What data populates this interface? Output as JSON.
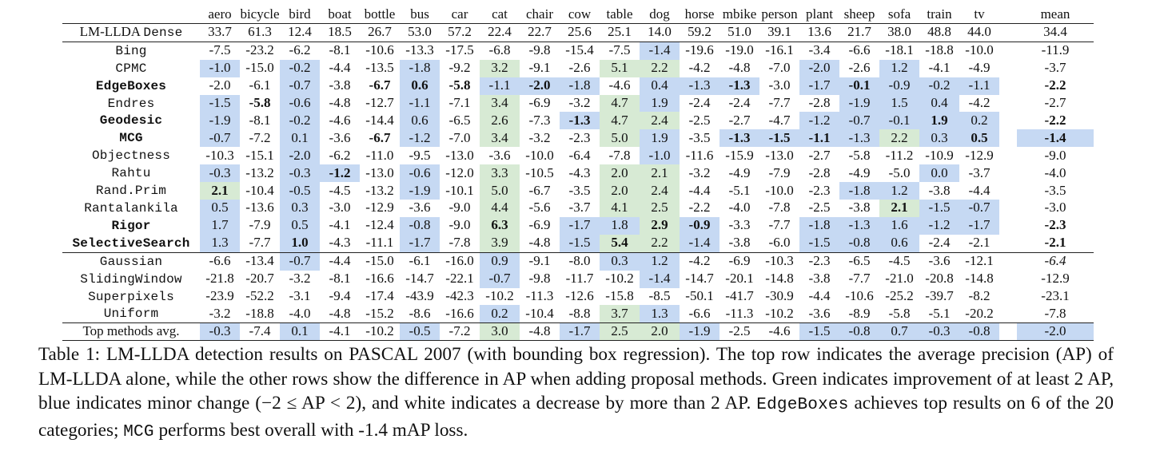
{
  "table": {
    "categories": [
      "aero",
      "bicycle",
      "bird",
      "boat",
      "bottle",
      "bus",
      "car",
      "cat",
      "chair",
      "cow",
      "table",
      "dog",
      "horse",
      "mbike",
      "person",
      "plant",
      "sheep",
      "sofa",
      "train",
      "tv"
    ],
    "mean_label": "mean",
    "base_row": {
      "label_prefix": "LM-LLDA ",
      "label_mono": "Dense",
      "values": [
        "33.7",
        "61.3",
        "12.4",
        "18.5",
        "26.7",
        "53.0",
        "57.2",
        "22.4",
        "22.7",
        "25.6",
        "25.1",
        "14.0",
        "59.2",
        "51.0",
        "39.1",
        "13.6",
        "21.7",
        "38.0",
        "48.8",
        "44.0"
      ],
      "mean": "34.4"
    },
    "groups": [
      [
        {
          "name": "Bing",
          "bold": false,
          "values": [
            "-7.5",
            "-23.2",
            "-6.2",
            "-8.1",
            "-10.6",
            "-13.3",
            "-17.5",
            "-6.8",
            "-9.8",
            "-15.4",
            "-7.5",
            "-1.4",
            "-19.6",
            "-19.0",
            "-16.1",
            "-3.4",
            "-6.6",
            "-18.1",
            "-18.8",
            "-10.0"
          ],
          "colors": [
            "w",
            "w",
            "w",
            "w",
            "w",
            "w",
            "w",
            "w",
            "w",
            "w",
            "w",
            "b",
            "w",
            "w",
            "w",
            "w",
            "w",
            "w",
            "w",
            "w"
          ],
          "bold_cells": [],
          "mean": "-11.9",
          "mean_color": "w",
          "mean_bold": false
        },
        {
          "name": "CPMC",
          "bold": false,
          "values": [
            "-1.0",
            "-15.0",
            "-0.2",
            "-4.4",
            "-13.5",
            "-1.8",
            "-9.2",
            "3.2",
            "-9.1",
            "-2.6",
            "5.1",
            "2.2",
            "-4.2",
            "-4.8",
            "-7.0",
            "-2.0",
            "-2.6",
            "1.2",
            "-4.1",
            "-4.9"
          ],
          "colors": [
            "b",
            "w",
            "b",
            "w",
            "w",
            "b",
            "w",
            "g",
            "w",
            "w",
            "g",
            "g",
            "w",
            "w",
            "w",
            "b",
            "w",
            "b",
            "w",
            "w"
          ],
          "bold_cells": [],
          "mean": "-3.7",
          "mean_color": "w",
          "mean_bold": false
        },
        {
          "name": "EdgeBoxes",
          "bold": true,
          "values": [
            "-2.0",
            "-6.1",
            "-0.7",
            "-3.8",
            "-6.7",
            "0.6",
            "-5.8",
            "-1.1",
            "-2.0",
            "-1.8",
            "-4.6",
            "0.4",
            "-1.3",
            "-1.3",
            "-3.0",
            "-1.7",
            "-0.1",
            "-0.9",
            "-0.2",
            "-1.1"
          ],
          "colors": [
            "w",
            "w",
            "b",
            "w",
            "w",
            "b",
            "w",
            "b",
            "b",
            "b",
            "w",
            "b",
            "b",
            "b",
            "w",
            "b",
            "b",
            "b",
            "b",
            "b"
          ],
          "bold_cells": [
            4,
            5,
            6,
            8,
            13,
            16
          ],
          "mean": "-2.2",
          "mean_color": "w",
          "mean_bold": true
        },
        {
          "name": "Endres",
          "bold": false,
          "values": [
            "-1.5",
            "-5.8",
            "-0.6",
            "-4.8",
            "-12.7",
            "-1.1",
            "-7.1",
            "3.4",
            "-6.9",
            "-3.2",
            "4.7",
            "1.9",
            "-2.4",
            "-2.4",
            "-7.7",
            "-2.8",
            "-1.9",
            "1.5",
            "0.4",
            "-4.2"
          ],
          "colors": [
            "b",
            "w",
            "b",
            "w",
            "w",
            "b",
            "w",
            "g",
            "w",
            "w",
            "g",
            "b",
            "w",
            "w",
            "w",
            "w",
            "b",
            "b",
            "b",
            "w"
          ],
          "bold_cells": [
            1
          ],
          "mean": "-2.7",
          "mean_color": "w",
          "mean_bold": false
        },
        {
          "name": "Geodesic",
          "bold": true,
          "values": [
            "-1.9",
            "-8.1",
            "-0.2",
            "-4.6",
            "-14.4",
            "0.6",
            "-6.5",
            "2.6",
            "-7.3",
            "-1.3",
            "4.7",
            "2.4",
            "-2.5",
            "-2.7",
            "-4.7",
            "-1.2",
            "-0.7",
            "-0.1",
            "1.9",
            "0.2"
          ],
          "colors": [
            "b",
            "w",
            "b",
            "w",
            "w",
            "b",
            "w",
            "g",
            "w",
            "b",
            "g",
            "g",
            "w",
            "w",
            "w",
            "b",
            "b",
            "b",
            "b",
            "b"
          ],
          "bold_cells": [
            9,
            18
          ],
          "mean": "-2.2",
          "mean_color": "w",
          "mean_bold": true
        },
        {
          "name": "MCG",
          "bold": true,
          "values": [
            "-0.7",
            "-7.2",
            "0.1",
            "-3.6",
            "-6.7",
            "-1.2",
            "-7.0",
            "3.4",
            "-3.2",
            "-2.3",
            "5.0",
            "1.9",
            "-3.5",
            "-1.3",
            "-1.5",
            "-1.1",
            "-1.3",
            "2.2",
            "0.3",
            "0.5"
          ],
          "colors": [
            "b",
            "w",
            "b",
            "w",
            "w",
            "b",
            "w",
            "g",
            "w",
            "w",
            "g",
            "b",
            "w",
            "b",
            "b",
            "b",
            "b",
            "g",
            "b",
            "b"
          ],
          "bold_cells": [
            4,
            13,
            14,
            15,
            19
          ],
          "mean": "-1.4",
          "mean_color": "b",
          "mean_bold": true
        },
        {
          "name": "Objectness",
          "bold": false,
          "values": [
            "-10.3",
            "-15.1",
            "-2.0",
            "-6.2",
            "-11.0",
            "-9.5",
            "-13.0",
            "-3.6",
            "-10.0",
            "-6.4",
            "-7.8",
            "-1.0",
            "-11.6",
            "-15.9",
            "-13.0",
            "-2.7",
            "-5.8",
            "-11.2",
            "-10.9",
            "-12.9"
          ],
          "colors": [
            "w",
            "w",
            "b",
            "w",
            "w",
            "w",
            "w",
            "w",
            "w",
            "w",
            "w",
            "b",
            "w",
            "w",
            "w",
            "w",
            "w",
            "w",
            "w",
            "w"
          ],
          "bold_cells": [],
          "mean": "-9.0",
          "mean_color": "w",
          "mean_bold": false
        },
        {
          "name": "Rahtu",
          "bold": false,
          "values": [
            "-0.3",
            "-13.2",
            "-0.3",
            "-1.2",
            "-13.0",
            "-0.6",
            "-12.0",
            "3.3",
            "-10.5",
            "-4.3",
            "2.0",
            "2.1",
            "-3.2",
            "-4.9",
            "-7.9",
            "-2.8",
            "-4.9",
            "-5.0",
            "0.0",
            "-3.7"
          ],
          "colors": [
            "b",
            "w",
            "b",
            "b",
            "w",
            "b",
            "w",
            "g",
            "w",
            "w",
            "g",
            "g",
            "w",
            "w",
            "w",
            "w",
            "w",
            "w",
            "b",
            "w"
          ],
          "bold_cells": [
            3
          ],
          "mean": "-4.0",
          "mean_color": "w",
          "mean_bold": false
        },
        {
          "name": "Rand.Prim",
          "bold": false,
          "values": [
            "2.1",
            "-10.4",
            "-0.5",
            "-4.5",
            "-13.2",
            "-1.9",
            "-10.1",
            "5.0",
            "-6.7",
            "-3.5",
            "2.0",
            "2.4",
            "-4.4",
            "-5.1",
            "-10.0",
            "-2.3",
            "-1.8",
            "1.2",
            "-3.8",
            "-4.4"
          ],
          "colors": [
            "g",
            "w",
            "b",
            "w",
            "w",
            "b",
            "w",
            "g",
            "w",
            "w",
            "g",
            "g",
            "w",
            "w",
            "w",
            "w",
            "b",
            "b",
            "w",
            "w"
          ],
          "bold_cells": [
            0
          ],
          "mean": "-3.5",
          "mean_color": "w",
          "mean_bold": false
        },
        {
          "name": "Rantalankila",
          "bold": false,
          "values": [
            "0.5",
            "-13.6",
            "0.3",
            "-3.0",
            "-12.9",
            "-3.6",
            "-9.0",
            "4.4",
            "-5.6",
            "-3.7",
            "4.1",
            "2.5",
            "-2.2",
            "-4.0",
            "-7.8",
            "-2.5",
            "-3.8",
            "2.1",
            "-1.5",
            "-0.7"
          ],
          "colors": [
            "b",
            "w",
            "b",
            "w",
            "w",
            "w",
            "w",
            "g",
            "w",
            "w",
            "g",
            "g",
            "w",
            "w",
            "w",
            "w",
            "w",
            "g",
            "b",
            "b"
          ],
          "bold_cells": [
            17
          ],
          "mean": "-3.0",
          "mean_color": "w",
          "mean_bold": false
        },
        {
          "name": "Rigor",
          "bold": true,
          "values": [
            "1.7",
            "-7.9",
            "0.5",
            "-4.1",
            "-12.4",
            "-0.8",
            "-9.0",
            "6.3",
            "-6.9",
            "-1.7",
            "1.8",
            "2.9",
            "-0.9",
            "-3.3",
            "-7.7",
            "-1.8",
            "-1.3",
            "1.6",
            "-1.2",
            "-1.7"
          ],
          "colors": [
            "b",
            "w",
            "b",
            "w",
            "w",
            "b",
            "w",
            "g",
            "w",
            "b",
            "b",
            "g",
            "b",
            "w",
            "w",
            "b",
            "b",
            "b",
            "b",
            "b"
          ],
          "bold_cells": [
            7,
            11,
            12
          ],
          "mean": "-2.3",
          "mean_color": "w",
          "mean_bold": true
        },
        {
          "name": "SelectiveSearch",
          "bold": true,
          "values": [
            "1.3",
            "-7.7",
            "1.0",
            "-4.3",
            "-11.1",
            "-1.7",
            "-7.8",
            "3.9",
            "-4.8",
            "-1.5",
            "5.4",
            "2.2",
            "-1.4",
            "-3.8",
            "-6.0",
            "-1.5",
            "-0.8",
            "0.6",
            "-2.4",
            "-2.1"
          ],
          "colors": [
            "b",
            "w",
            "b",
            "w",
            "w",
            "b",
            "w",
            "g",
            "w",
            "b",
            "g",
            "g",
            "b",
            "w",
            "w",
            "b",
            "b",
            "b",
            "w",
            "w"
          ],
          "bold_cells": [
            2,
            10
          ],
          "mean": "-2.1",
          "mean_color": "w",
          "mean_bold": true
        }
      ],
      [
        {
          "name": "Gaussian",
          "bold": false,
          "values": [
            "-6.6",
            "-13.4",
            "-0.7",
            "-4.4",
            "-15.0",
            "-6.1",
            "-16.0",
            "0.9",
            "-9.1",
            "-8.0",
            "0.3",
            "1.2",
            "-4.2",
            "-6.9",
            "-10.3",
            "-2.3",
            "-6.5",
            "-4.5",
            "-3.6",
            "-12.1"
          ],
          "colors": [
            "w",
            "w",
            "b",
            "w",
            "w",
            "w",
            "w",
            "b",
            "w",
            "w",
            "b",
            "b",
            "w",
            "w",
            "w",
            "w",
            "w",
            "w",
            "w",
            "w"
          ],
          "bold_cells": [],
          "mean": "-6.4",
          "mean_color": "w",
          "mean_bold": false,
          "mean_italic": true
        },
        {
          "name": "SlidingWindow",
          "bold": false,
          "values": [
            "-21.8",
            "-20.7",
            "-3.2",
            "-8.1",
            "-16.6",
            "-14.7",
            "-22.1",
            "-0.7",
            "-9.8",
            "-11.7",
            "-10.2",
            "-1.4",
            "-14.7",
            "-20.1",
            "-14.8",
            "-3.8",
            "-7.7",
            "-21.0",
            "-20.8",
            "-14.8"
          ],
          "colors": [
            "w",
            "w",
            "w",
            "w",
            "w",
            "w",
            "w",
            "b",
            "w",
            "w",
            "w",
            "b",
            "w",
            "w",
            "w",
            "w",
            "w",
            "w",
            "w",
            "w"
          ],
          "bold_cells": [],
          "mean": "-12.9",
          "mean_color": "w",
          "mean_bold": false
        },
        {
          "name": "Superpixels",
          "bold": false,
          "values": [
            "-23.9",
            "-52.2",
            "-3.1",
            "-9.4",
            "-17.4",
            "-43.9",
            "-42.3",
            "-10.2",
            "-11.3",
            "-12.6",
            "-15.8",
            "-8.5",
            "-50.1",
            "-41.7",
            "-30.9",
            "-4.4",
            "-10.6",
            "-25.2",
            "-39.7",
            "-8.2"
          ],
          "colors": [
            "w",
            "w",
            "w",
            "w",
            "w",
            "w",
            "w",
            "w",
            "w",
            "w",
            "w",
            "w",
            "w",
            "w",
            "w",
            "w",
            "w",
            "w",
            "w",
            "w"
          ],
          "bold_cells": [],
          "mean": "-23.1",
          "mean_color": "w",
          "mean_bold": false
        },
        {
          "name": "Uniform",
          "bold": false,
          "values": [
            "-3.2",
            "-18.8",
            "-4.0",
            "-4.8",
            "-15.2",
            "-8.6",
            "-16.6",
            "0.2",
            "-10.4",
            "-8.8",
            "3.7",
            "1.3",
            "-6.6",
            "-11.3",
            "-10.2",
            "-3.6",
            "-8.9",
            "-5.8",
            "-5.1",
            "-20.2"
          ],
          "colors": [
            "w",
            "w",
            "w",
            "w",
            "w",
            "w",
            "w",
            "b",
            "w",
            "w",
            "g",
            "b",
            "w",
            "w",
            "w",
            "w",
            "w",
            "w",
            "w",
            "w"
          ],
          "bold_cells": [],
          "mean": "-7.8",
          "mean_color": "w",
          "mean_bold": false
        }
      ]
    ],
    "avg_row": {
      "label": "Top methods avg.",
      "values": [
        "-0.3",
        "-7.4",
        "0.1",
        "-4.1",
        "-10.2",
        "-0.5",
        "-7.2",
        "3.0",
        "-4.8",
        "-1.7",
        "2.5",
        "2.0",
        "-1.9",
        "-2.5",
        "-4.6",
        "-1.5",
        "-0.8",
        "0.7",
        "-0.3",
        "-0.8"
      ],
      "colors": [
        "b",
        "w",
        "b",
        "w",
        "w",
        "b",
        "w",
        "g",
        "w",
        "b",
        "g",
        "g",
        "b",
        "w",
        "w",
        "b",
        "b",
        "b",
        "b",
        "b"
      ],
      "mean": "-2.0",
      "mean_color": "b"
    }
  },
  "caption": {
    "lead": "Table 1: LM-LLDA detection results on PASCAL 2007 (with bounding box regression). The top row indicates the average precision (AP) of LM-LLDA alone, while the other rows show the difference in AP when adding proposal methods. Green indicates improvement of at least 2 AP, blue indicates minor change (",
    "range": "−2 ≤ AP < 2",
    "mid": "), and white indicates a decrease by more than 2 AP. ",
    "mono1": "EdgeBoxes",
    "mid2": " achieves top results on 6 of the 20 categories; ",
    "mono2": "MCG",
    "tail": " performs best overall with -1.4 mAP loss."
  },
  "colors": {
    "green_cell": "#d7ead4",
    "blue_cell": "#c6d9f3",
    "white_cell": "#ffffff"
  }
}
